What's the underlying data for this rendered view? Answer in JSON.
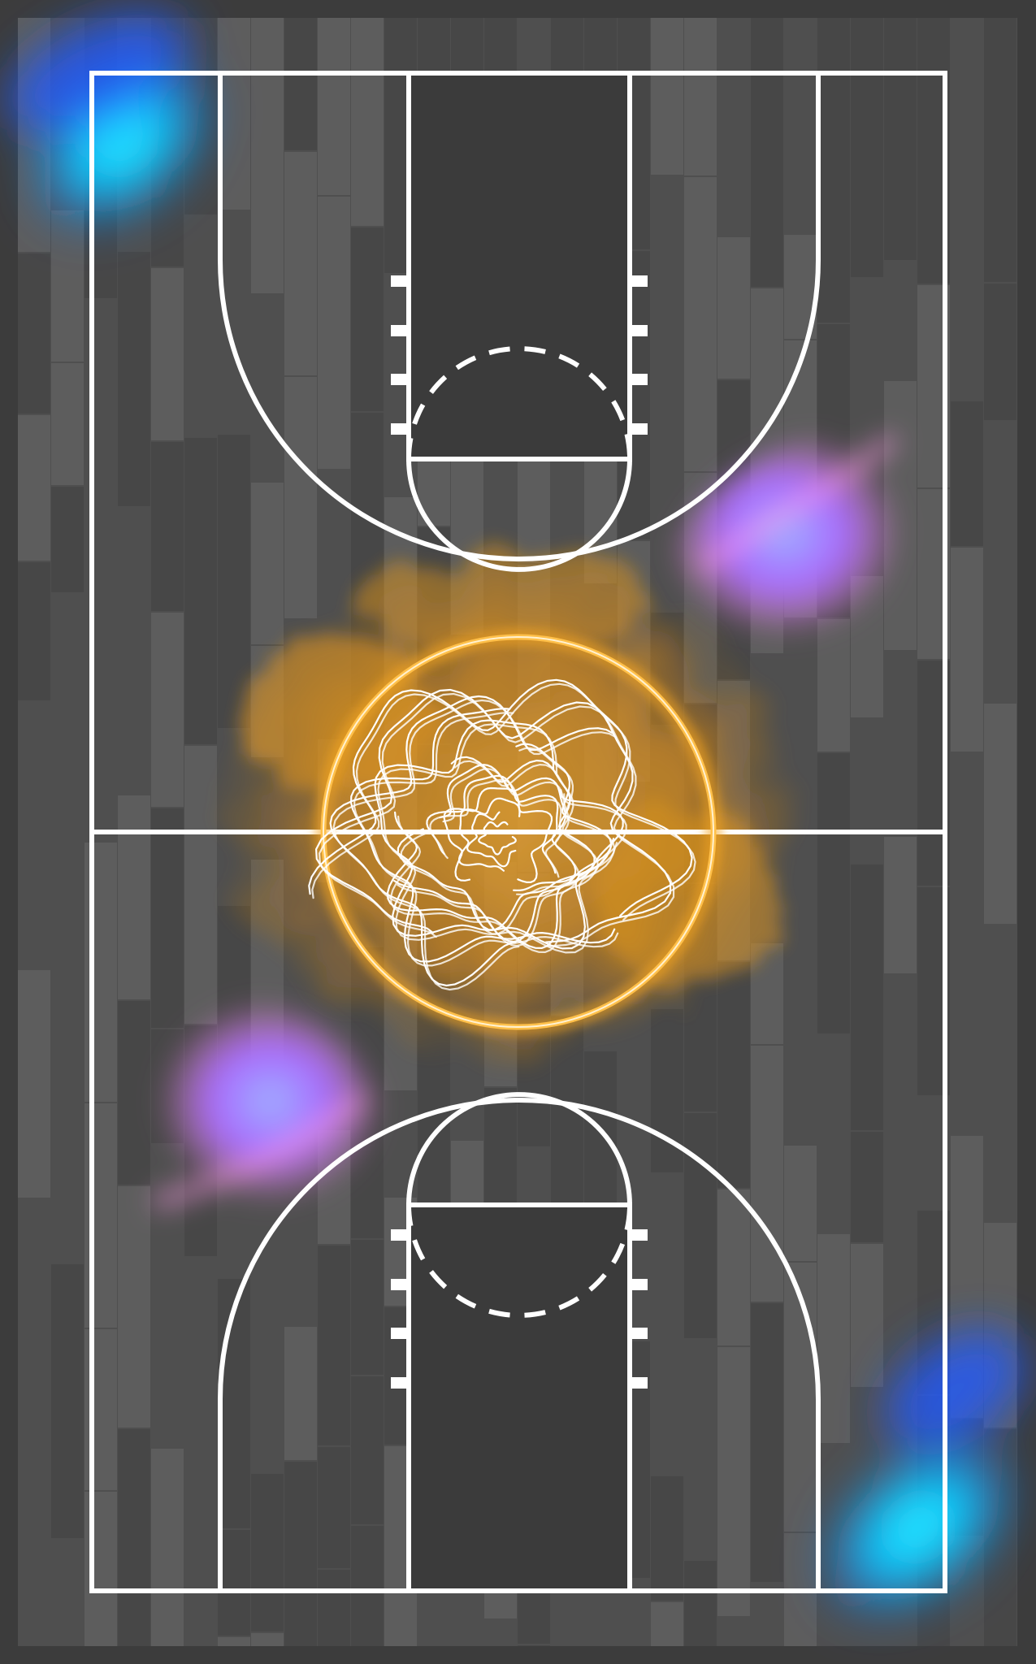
{
  "scene": {
    "subject": "basketball-court-top-view",
    "orientation": "portrait",
    "colors": {
      "background": "#3c3c3c",
      "floor": "#4f4f4f",
      "plank_light": "#5e5e5e",
      "plank_dark": "#464646",
      "paint": "#3b3b3b",
      "lines": "#ffffff",
      "center_glow": "#f5a623",
      "smoke": "#e89a1c",
      "cyan_glow": "#00e5ff",
      "blue_glow": "#1f6bff",
      "violet_glow": "#b86bff",
      "pink_glow": "#ff8de0"
    },
    "decorations": [
      "orange-smoke-center-circle",
      "white-swirl-ornament",
      "cyan-glow-top-left",
      "cyan-glow-bottom-right",
      "violet-glow-right",
      "violet-glow-left"
    ]
  }
}
